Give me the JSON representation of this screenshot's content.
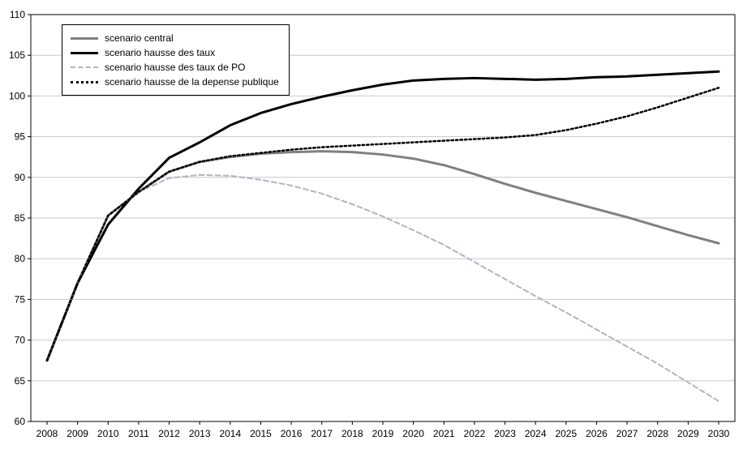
{
  "chart_data": {
    "type": "line",
    "title": "",
    "xlabel": "",
    "ylabel": "",
    "ylim": [
      60,
      110
    ],
    "ytick_step": 5,
    "grid": true,
    "legend_position": "top-left-inside",
    "x": [
      "2008",
      "2009",
      "2010",
      "2011",
      "2012",
      "2013",
      "2014",
      "2015",
      "2016",
      "2017",
      "2018",
      "2019",
      "2020",
      "2021",
      "2022",
      "2023",
      "2024",
      "2025",
      "2026",
      "2027",
      "2028",
      "2029",
      "2030"
    ],
    "series": [
      {
        "name": "scenario central",
        "color": "#808080",
        "style": "solid",
        "width": 3,
        "values": [
          67.5,
          77.0,
          85.3,
          88.2,
          90.7,
          91.9,
          92.5,
          92.9,
          93.1,
          93.2,
          93.1,
          92.8,
          92.3,
          91.5,
          90.4,
          89.2,
          88.1,
          87.1,
          86.1,
          85.1,
          84.0,
          82.9,
          81.9
        ]
      },
      {
        "name": "scenario hausse des taux",
        "color": "#000000",
        "style": "solid",
        "width": 3,
        "values": [
          67.5,
          77.0,
          84.2,
          88.6,
          92.4,
          94.3,
          96.4,
          97.9,
          99.0,
          99.9,
          100.7,
          101.4,
          101.9,
          102.1,
          102.2,
          102.1,
          102.0,
          102.1,
          102.3,
          102.4,
          102.6,
          102.8,
          103.0
        ]
      },
      {
        "name": "scenario hausse des taux de PO",
        "color": "#b3b3c2",
        "style": "dashed",
        "width": 2,
        "values": [
          67.5,
          77.0,
          85.3,
          88.2,
          89.9,
          90.3,
          90.2,
          89.7,
          89.0,
          88.0,
          86.7,
          85.2,
          83.5,
          81.7,
          79.6,
          77.5,
          75.4,
          73.4,
          71.3,
          69.2,
          67.1,
          64.8,
          62.5
        ]
      },
      {
        "name": "scenario hausse de la depense publique",
        "color": "#000000",
        "style": "dotted",
        "width": 2.5,
        "values": [
          67.5,
          77.0,
          85.3,
          88.2,
          90.7,
          91.9,
          92.6,
          93.0,
          93.4,
          93.7,
          93.9,
          94.1,
          94.3,
          94.5,
          94.7,
          94.9,
          95.2,
          95.8,
          96.6,
          97.5,
          98.6,
          99.8,
          101.0
        ]
      }
    ],
    "colors": {
      "grid": "#c8c8c8",
      "axis": "#000000",
      "background": "#ffffff"
    }
  }
}
